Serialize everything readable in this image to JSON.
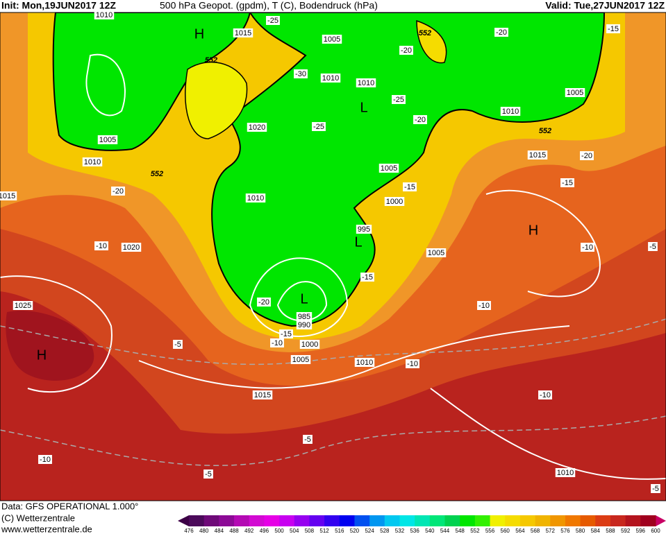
{
  "header": {
    "init": "Init: Mon,19JUN2017 12Z",
    "title": "500 hPa Geopot. (gpdm), T (C), Bodendruck (hPa)",
    "valid": "Valid: Tue,27JUN2017 12Z"
  },
  "footer": {
    "data": "Data: GFS OPERATIONAL 1.000°",
    "copyright": "(C) Wetterzentrale",
    "url": "www.wetterzentrale.de"
  },
  "legend": {
    "labels": [
      476,
      480,
      484,
      488,
      492,
      496,
      500,
      504,
      508,
      512,
      516,
      520,
      524,
      528,
      532,
      536,
      540,
      544,
      548,
      552,
      556,
      560,
      564,
      568,
      572,
      576,
      580,
      584,
      588,
      592,
      596,
      600
    ],
    "colors": [
      "#4b0a5a",
      "#6e0a78",
      "#8c0a96",
      "#b40ab4",
      "#d20ad2",
      "#e600e6",
      "#c800f0",
      "#9600f0",
      "#6400f0",
      "#3200f0",
      "#0000f0",
      "#0050f0",
      "#0096f0",
      "#00c8f0",
      "#00e6e6",
      "#00e6b4",
      "#00e678",
      "#00d250",
      "#00e600",
      "#32f000",
      "#f0f000",
      "#f5dc00",
      "#f5c800",
      "#f0b400",
      "#f09600",
      "#f07800",
      "#e65a00",
      "#dc3c14",
      "#c8281e",
      "#b4141e",
      "#a0001e"
    ]
  },
  "map": {
    "pressure_labels": [
      "1010",
      "1015",
      "1005",
      "1010",
      "1010",
      "1020",
      "1005",
      "1010",
      "1015",
      "1010",
      "1005",
      "1000",
      "995",
      "1020",
      "1005",
      "1025",
      "985",
      "990",
      "1000",
      "1005",
      "1010",
      "1015",
      "1010",
      "1005",
      "1010",
      "1015"
    ],
    "temperature_labels": [
      "-25",
      "-30",
      "-25",
      "-20",
      "-25",
      "-20",
      "-20",
      "-15",
      "-20",
      "-15",
      "-15",
      "-20",
      "-10",
      "-10",
      "-5",
      "-15",
      "-20",
      "-15",
      "-10",
      "-10",
      "-5",
      "-10",
      "-10",
      "-5",
      "-10",
      "-5",
      "-5"
    ],
    "height_labels": [
      "552",
      "552",
      "552",
      "552"
    ],
    "centers": [
      "H",
      "L",
      "H",
      "L",
      "L",
      "H"
    ]
  }
}
